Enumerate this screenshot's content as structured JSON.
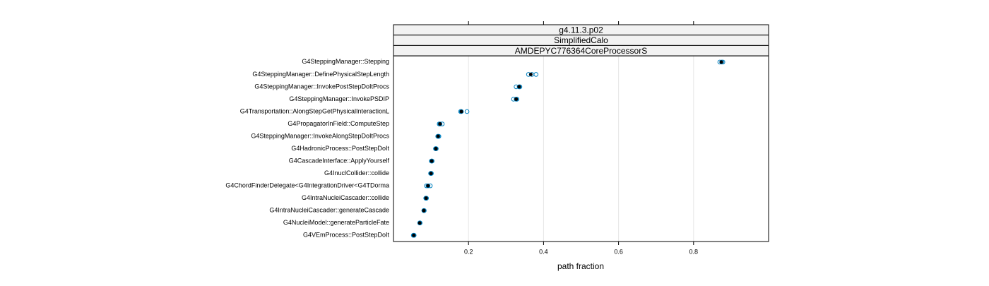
{
  "chart_data": {
    "type": "dotplot",
    "strips": [
      "g4.11.3.p02",
      "SimplifiedCalo",
      "AMDEPYC776364CoreProcessorS"
    ],
    "xlabel": "path fraction",
    "categories": [
      "G4SteppingManager::Stepping",
      "G4SteppingManager::DefinePhysicalStepLength",
      "G4SteppingManager::InvokePostStepDoItProcs",
      "G4SteppingManager::InvokePSDIP",
      "G4Transportation::AlongStepGetPhysicalInteractionL",
      "G4PropagatorInField::ComputeStep",
      "G4SteppingManager::InvokeAlongStepDoItProcs",
      "G4HadronicProcess::PostStepDoIt",
      "G4CascadeInterface::ApplyYourself",
      "G4InuclCollider::collide",
      "G4ChordFinderDelegate<G4IntegrationDriver<G4TDorma",
      "G4IntraNucleiCascader::collide",
      "G4IntraNucleiCascader::generateCascade",
      "G4NucleiModel::generateParticleFate",
      "G4VEmProcess::PostStepDoIt"
    ],
    "series": [
      {
        "color": "#0080c0",
        "marker": "open",
        "values": [
          0.87,
          0.36,
          0.327,
          0.32,
          0.179,
          0.122,
          0.118,
          0.112,
          0.101,
          0.099,
          0.088,
          0.086,
          0.081,
          0.07,
          0.053
        ]
      },
      {
        "color": "#0080c0",
        "marker": "open",
        "values": [
          0.875,
          0.369,
          0.337,
          0.329,
          0.196,
          0.13,
          0.121,
          0.114,
          0.103,
          0.101,
          0.098,
          0.088,
          0.082,
          0.071,
          0.055
        ]
      },
      {
        "color": "#0080c0",
        "marker": "open",
        "values": [
          0.878,
          0.38,
          0.335,
          0.327,
          0.181,
          0.124,
          0.119,
          0.113,
          0.102,
          0.1,
          0.092,
          0.087,
          0.081,
          0.07,
          0.054
        ]
      },
      {
        "color": "#000000",
        "marker": "filled",
        "values": [
          0.874,
          0.366,
          0.335,
          0.327,
          0.181,
          0.124,
          0.119,
          0.113,
          0.102,
          0.1,
          0.092,
          0.087,
          0.081,
          0.07,
          0.054
        ]
      }
    ],
    "xlim": [
      0,
      1
    ],
    "xticks": [
      0.2,
      0.4,
      0.6,
      0.8
    ],
    "grid": true
  }
}
